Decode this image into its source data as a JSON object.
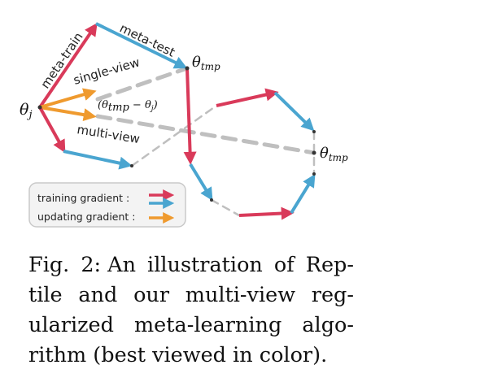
{
  "figure": {
    "labels": {
      "meta_train": "meta-train",
      "meta_test": "meta-test",
      "single_view": "single-view",
      "multi_view": "multi-view",
      "diff": "(θ",
      "diff_sub1": "tmp",
      "diff_mid": " − θ",
      "diff_sub2": "j",
      "diff_end": ")",
      "theta_j": "θ",
      "theta_j_sub": "j",
      "theta_tmp_top": "θ",
      "theta_tmp_top_sub": "tmp",
      "theta_tmp_right": "θ",
      "theta_tmp_right_sub": "tmp"
    },
    "legend": {
      "training": "training   gradient :",
      "updating": "updating gradient :"
    },
    "colors": {
      "training_red": "#d93a5a",
      "training_blue": "#4aa5d0",
      "updating_orange": "#ef9a2e",
      "dashed_gray": "#bfbfbf"
    }
  },
  "caption": {
    "label": "Fig. 2:",
    "text": "An illustration of Rep­tile and our multi-view reg­ularized meta-learning algo­rithm (best viewed in color)."
  }
}
